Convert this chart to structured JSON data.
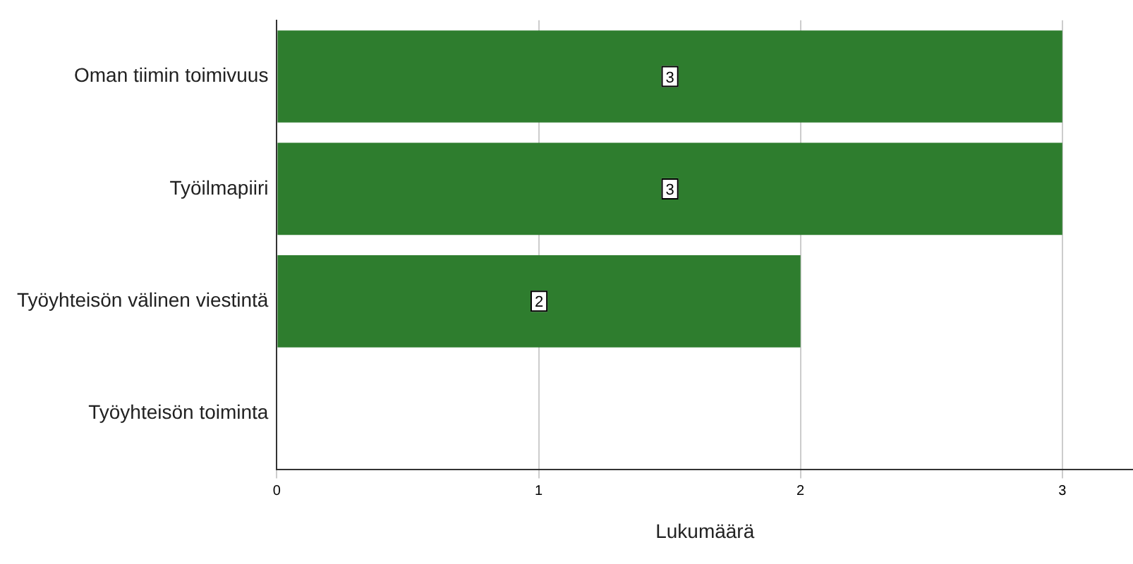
{
  "chart_data": {
    "type": "bar",
    "orientation": "horizontal",
    "xlabel": "Lukumäärä",
    "categories": [
      "Oman tiimin toimivuus",
      "Työilmapiiri",
      "Työyhteisön välinen viestintä",
      "Työyhteisön toiminta"
    ],
    "values": [
      3,
      3,
      2,
      0
    ],
    "value_labels": [
      "3",
      "3",
      "2",
      null
    ],
    "color": "#2e7d2e",
    "xlim": [
      0,
      3.27
    ],
    "xticks": [
      0,
      1,
      2,
      3
    ],
    "grid": "x"
  }
}
